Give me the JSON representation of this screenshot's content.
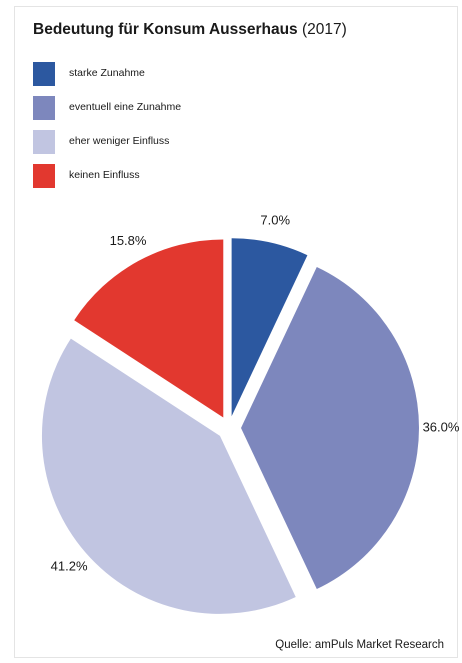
{
  "chart_data": {
    "type": "pie",
    "title": "Bedeutung für Konsum Ausserhaus",
    "year_label": "(2017)",
    "categories": [
      "starke Zunahme",
      "eventuell eine Zunahme",
      "eher weniger Einfluss",
      "keinen Einfluss"
    ],
    "values": [
      7.0,
      36.0,
      41.2,
      15.8
    ],
    "value_labels": [
      "7.0%",
      "36.0%",
      "41.2%",
      "15.8%"
    ],
    "colors": [
      "#2c58a0",
      "#7d87bd",
      "#c1c5e1",
      "#e2382f"
    ],
    "exploded": true,
    "legend_position": "top-left"
  },
  "source": "Quelle: amPuls Market Research"
}
